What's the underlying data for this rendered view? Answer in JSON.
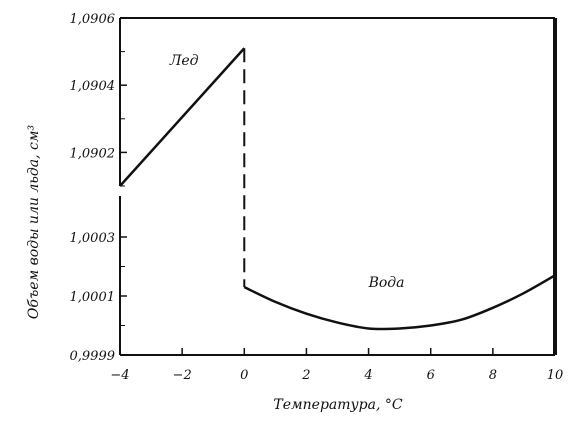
{
  "chart_data": {
    "type": "line",
    "title": "",
    "xlabel": "Температура, °C",
    "ylabel": "Объем воды или льда, см³",
    "xlim": [
      -4,
      10
    ],
    "x_ticks": [
      -4,
      -2,
      0,
      2,
      4,
      6,
      8,
      10
    ],
    "x_tick_labels": [
      "−4",
      "−2",
      "0",
      "2",
      "4",
      "6",
      "8",
      "10"
    ],
    "y_axis_broken": true,
    "ylim_upper_panel": [
      1.0901,
      1.0906
    ],
    "ylim_lower_panel": [
      0.9999,
      1.0005
    ],
    "y_ticks": [
      0.9999,
      1.0001,
      1.0003,
      1.0902,
      1.0904,
      1.0906
    ],
    "y_tick_labels": [
      "0,9999",
      "1,0001",
      "1,0003",
      "1,0902",
      "1,0904",
      "1,0906"
    ],
    "grid": false,
    "legend": "none",
    "series": [
      {
        "name": "Лед",
        "x": [
          -4,
          0
        ],
        "y": [
          1.0901,
          1.09051
        ]
      },
      {
        "name": "Вода",
        "x": [
          0,
          1,
          2,
          3,
          4,
          5,
          6,
          7,
          8,
          9,
          10
        ],
        "y": [
          1.00013,
          1.00008,
          1.00004,
          1.00001,
          0.99999,
          0.99999,
          1.0,
          1.00002,
          1.00006,
          1.00011,
          1.00017
        ]
      }
    ],
    "annotations": [
      {
        "text": "Лед",
        "series": "Лед"
      },
      {
        "text": "Вода",
        "series": "Вода"
      }
    ],
    "colors": {
      "line": "#111111",
      "background": "#ffffff"
    }
  }
}
